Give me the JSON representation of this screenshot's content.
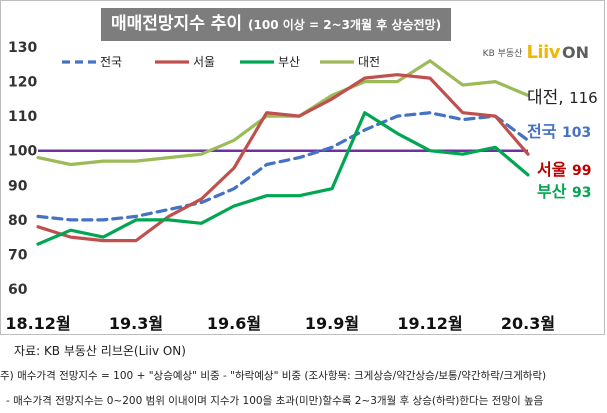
{
  "title": {
    "main": "매매전망지수 추이",
    "sub": "(100 이상 = 2~3개월 후 상승전망)"
  },
  "logo": {
    "kb": "KB 부동산",
    "brand": "Liiv",
    "on": "ON"
  },
  "source_text": "자료: KB 부동산  리브온(Liiv ON)",
  "notes": [
    "주) 매수가격 전망지수 = 100 + \"상승예상\" 비중 - \"하락예상\" 비중 (조사항목: 크게상승/약간상승/보통/약간하락/크게하락)",
    "- 매수가격 전망지수는 0~200 범위 이내이며 지수가 100을 초과(미만)할수록 2~3개월 후 상승(하락)한다는 전망이 높음"
  ],
  "colors": {
    "national": "#4472c4",
    "seoul": "#c0504d",
    "busan": "#00a651",
    "daejeon": "#9bbb59",
    "reference": "#7030a0"
  },
  "chart_data": {
    "type": "line",
    "title": "매매전망지수 추이",
    "subtitle": "(100 이상 = 2~3개월 후 상승전망)",
    "x": [
      "18.12",
      "19.1",
      "19.2",
      "19.3",
      "19.4",
      "19.5",
      "19.6",
      "19.7",
      "19.8",
      "19.9",
      "19.10",
      "19.11",
      "19.12",
      "20.1",
      "20.2",
      "20.3"
    ],
    "x_tick_labels": [
      "18.12월",
      "19.3월",
      "19.6월",
      "19.9월",
      "19.12월",
      "20.3월"
    ],
    "ylim": [
      60,
      130
    ],
    "y_ticks": [
      60,
      70,
      80,
      90,
      100,
      110,
      120,
      130
    ],
    "reference_line": 100,
    "legend_position": "top-left",
    "series": [
      {
        "name": "전국",
        "key": "national",
        "style": "dashed",
        "values": [
          81,
          80,
          80,
          81,
          83,
          85,
          89,
          96,
          98,
          101,
          106,
          110,
          111,
          109,
          110,
          103
        ]
      },
      {
        "name": "서울",
        "key": "seoul",
        "style": "solid",
        "values": [
          78,
          75,
          74,
          74,
          81,
          86,
          95,
          111,
          110,
          115,
          121,
          122,
          121,
          111,
          110,
          99
        ]
      },
      {
        "name": "부산",
        "key": "busan",
        "style": "solid",
        "values": [
          73,
          77,
          75,
          80,
          80,
          79,
          84,
          87,
          87,
          89,
          111,
          105,
          100,
          99,
          101,
          93
        ]
      },
      {
        "name": "대전",
        "key": "daejeon",
        "style": "solid",
        "values": [
          98,
          96,
          97,
          97,
          98,
          99,
          103,
          110,
          110,
          116,
          120,
          120,
          126,
          119,
          120,
          116
        ]
      }
    ],
    "end_labels": [
      {
        "key": "daejeon",
        "name": "대전",
        "value": "116"
      },
      {
        "key": "national",
        "name": "전국",
        "value": "103"
      },
      {
        "key": "seoul",
        "name": "서울",
        "value": "99"
      },
      {
        "key": "busan",
        "name": "부산",
        "value": "93"
      }
    ]
  }
}
